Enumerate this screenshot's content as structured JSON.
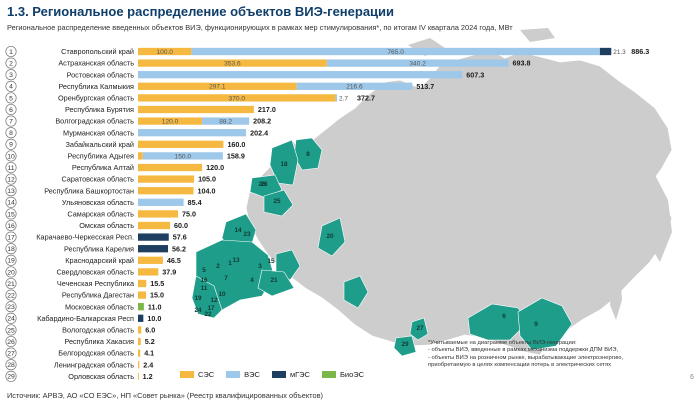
{
  "header": {
    "title": "1.3. Региональное распределение объектов ВИЭ-генерации",
    "subtitle": "Региональное распределение введенных объектов ВИЭ, функционирующих в рамках мер стимулирования*, по итогам IV квартала 2024 года, МВт"
  },
  "source": "Источник: АРВЭ, АО «СО ЕЭС», НП «Совет рынка» (Реестр квалифицированных объектов)",
  "page_number": "6",
  "note_lines": [
    "*Учитываемые на диаграмме объекты ВИЭ-генерации:",
    "- объекты ВИЭ, введенные в рамках механизма поддержки ДПМ ВИЭ,",
    "- объекты ВИЭ на розничном рынке, вырабатывающие электроэнергию,",
    "  приобретаемую в целях компенсации потерь в электрических сетях"
  ],
  "colors": {
    "СЭС": "#f5b942",
    "ВЭС": "#9ec8ea",
    "мГЭС": "#1f3f60",
    "БиоЭС": "#7ab648",
    "map_fill": "#1f9d8b",
    "map_base": "#cdcdcd",
    "map_border": "#ffffff"
  },
  "chart_data": {
    "type": "bar",
    "stacked": true,
    "orientation": "horizontal",
    "unit": "МВт",
    "legend_position": "bottom",
    "categories": [
      "Ставропольский край",
      "Астраханская область",
      "Ростовская область",
      "Республика Калмыкия",
      "Оренбургская область",
      "Республика Бурятия",
      "Волгоградская область",
      "Мурманская область",
      "Забайкальский край",
      "Республика Адыгея",
      "Республика Алтай",
      "Саратовская область",
      "Республика Башкортостан",
      "Ульяновская область",
      "Самарская область",
      "Омская область",
      "Карачаево-Черкесская Респ.",
      "Республика Карелия",
      "Краснодарский край",
      "Свердловская область",
      "Чеченская Республика",
      "Республика Дагестан",
      "Московская область",
      "Кабардино-Балкарская Респ",
      "Вологодская область",
      "Республика Хакасия",
      "Белгородская область",
      "Ленинградская область",
      "Орловская область"
    ],
    "numbers": [
      "1",
      "2",
      "3",
      "4",
      "5",
      "6",
      "7",
      "8",
      "9",
      "10",
      "11",
      "12",
      "13",
      "14",
      "15",
      "16",
      "17",
      "18",
      "19",
      "20",
      "21",
      "22",
      "23",
      "24",
      "25",
      "26",
      "27",
      "28",
      "29"
    ],
    "series": [
      {
        "name": "СЭС",
        "values": [
          100.0,
          353.6,
          0,
          297.1,
          370.0,
          217.0,
          120.0,
          0,
          160.0,
          8.9,
          120.0,
          105.0,
          104.0,
          0,
          75.0,
          60.0,
          0,
          0,
          46.5,
          37.9,
          15.5,
          15.0,
          0,
          0,
          6.0,
          5.2,
          4.1,
          2.4,
          1.2
        ]
      },
      {
        "name": "ВЭС",
        "values": [
          765.0,
          340.2,
          607.3,
          216.6,
          2.7,
          0,
          88.2,
          202.4,
          0,
          150.0,
          0,
          0,
          0,
          85.4,
          0,
          0,
          0,
          0,
          0,
          0,
          0,
          0,
          0,
          0,
          0,
          0,
          0,
          0,
          0
        ]
      },
      {
        "name": "мГЭС",
        "values": [
          21.3,
          0,
          0,
          0,
          0,
          0,
          0,
          0,
          0,
          0,
          0,
          0,
          0,
          0,
          0,
          0,
          57.6,
          56.2,
          0,
          0,
          0,
          0,
          0,
          10.0,
          0,
          0,
          0,
          0,
          0
        ]
      },
      {
        "name": "БиоЭС",
        "values": [
          0,
          0,
          0,
          0,
          0,
          0,
          0,
          0,
          0,
          0,
          0,
          0,
          0,
          0,
          0,
          0,
          0,
          0,
          0,
          0,
          0,
          0,
          11.0,
          0,
          0,
          0,
          0,
          0,
          0
        ]
      }
    ],
    "segment_labels": [
      [
        "100.0",
        "765.0",
        "21.3",
        null
      ],
      [
        "353.6",
        "340.2",
        null,
        null
      ],
      [
        null,
        null,
        null,
        null
      ],
      [
        "297.1",
        "216.6",
        null,
        null
      ],
      [
        "370.0",
        "2.7",
        null,
        null
      ],
      [
        null,
        null,
        null,
        null
      ],
      [
        "120.0",
        "88.2",
        null,
        null
      ],
      [
        null,
        null,
        null,
        null
      ],
      [
        null,
        null,
        null,
        null
      ],
      [
        null,
        "150.0",
        null,
        null
      ],
      [
        null,
        null,
        null,
        null
      ],
      [
        null,
        null,
        null,
        null
      ],
      [
        null,
        null,
        null,
        null
      ],
      [
        null,
        null,
        null,
        null
      ],
      [
        null,
        null,
        null,
        null
      ],
      [
        null,
        null,
        null,
        null
      ],
      [
        null,
        null,
        null,
        null
      ],
      [
        null,
        null,
        null,
        null
      ],
      [
        null,
        null,
        null,
        null
      ],
      [
        null,
        null,
        null,
        null
      ],
      [
        null,
        null,
        null,
        null
      ],
      [
        null,
        null,
        null,
        null
      ],
      [
        null,
        null,
        null,
        null
      ],
      [
        null,
        null,
        null,
        null
      ],
      [
        null,
        null,
        null,
        null
      ],
      [
        null,
        null,
        null,
        null
      ],
      [
        null,
        null,
        null,
        null
      ],
      [
        null,
        null,
        null,
        null
      ],
      [
        null,
        null,
        null,
        null
      ]
    ],
    "totals": [
      "886.3",
      "693.8",
      "607.3",
      "513.7",
      "372.7",
      "217.0",
      "208.2",
      "202.4",
      "160.0",
      "158.9",
      "120.0",
      "105.0",
      "104.0",
      "85.4",
      "75.0",
      "60.0",
      "57.6",
      "56.2",
      "46.5",
      "37.9",
      "15.5",
      "15.0",
      "11.0",
      "10.0",
      "6.0",
      "5.2",
      "4.1",
      "2.4",
      "1.2"
    ]
  },
  "map": {
    "region_numbers": [
      "8",
      "18",
      "28",
      "25",
      "26",
      "14",
      "23",
      "1",
      "2",
      "3",
      "4",
      "5",
      "7",
      "10",
      "11",
      "12",
      "13",
      "15",
      "16",
      "17",
      "19",
      "20",
      "21",
      "22",
      "24",
      "27",
      "29",
      "9",
      "6"
    ]
  }
}
